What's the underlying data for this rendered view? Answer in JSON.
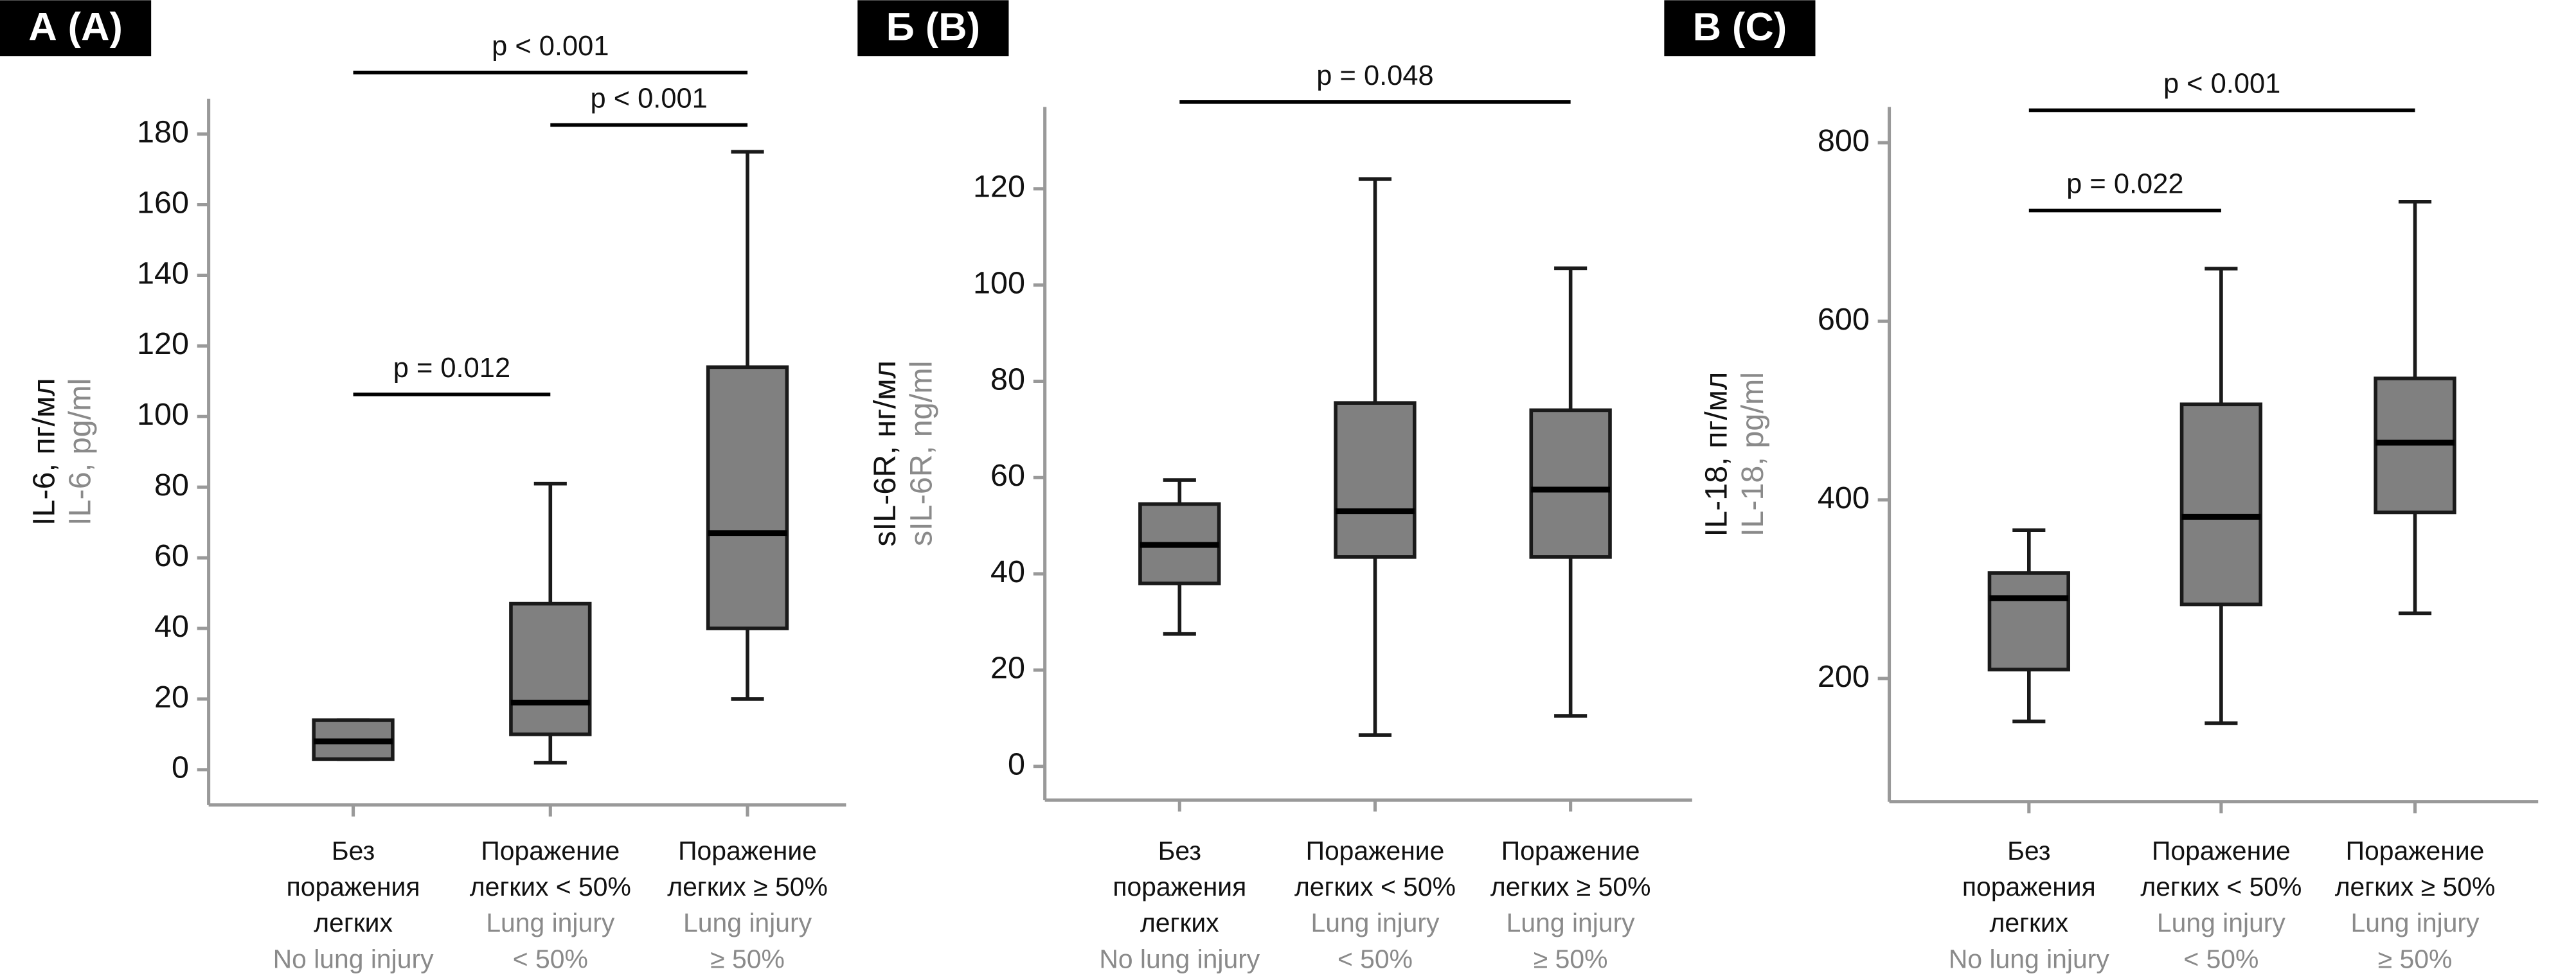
{
  "chart_data": [
    {
      "type": "box",
      "title": "А (A)",
      "ylabel": "IL-6, пг/мл",
      "ylabel_en": "IL-6, pg/ml",
      "categories": [
        [
          "Без",
          "поражения",
          "легких"
        ],
        [
          "Поражение",
          "легких < 50%"
        ],
        [
          "Поражение",
          "легких ≥ 50%"
        ]
      ],
      "categories_en": [
        [
          "No lung injury"
        ],
        [
          "Lung injury",
          "< 50%"
        ],
        [
          "Lung injury",
          "≥ 50%"
        ]
      ],
      "color": "#808080",
      "boxes": [
        {
          "min": 3,
          "q1": 3,
          "median": 8,
          "q3": 14,
          "max": 14
        },
        {
          "min": 2,
          "q1": 10,
          "median": 19,
          "q3": 47,
          "max": 81
        },
        {
          "min": 20,
          "q1": 40,
          "median": 67,
          "q3": 114,
          "max": 175
        }
      ],
      "ylim": [
        -10,
        190
      ],
      "yticks": [
        0,
        20,
        40,
        60,
        80,
        100,
        120,
        140,
        160,
        180
      ],
      "annotations": [
        {
          "text": "p < 0.001",
          "from": 0,
          "to": 2
        },
        {
          "text": "p < 0.001",
          "from": 1,
          "to": 2
        },
        {
          "text": "p = 0.012",
          "from": 0,
          "to": 1
        }
      ]
    },
    {
      "type": "box",
      "title": "Б (B)",
      "ylabel": "sIL-6R, нг/мл",
      "ylabel_en": "sIL-6R, ng/ml",
      "categories": [
        [
          "Без",
          "поражения",
          "легких"
        ],
        [
          "Поражение",
          "легких < 50%"
        ],
        [
          "Поражение",
          "легких ≥ 50%"
        ]
      ],
      "categories_en": [
        [
          "No lung injury"
        ],
        [
          "Lung injury",
          "< 50%"
        ],
        [
          "Lung injury",
          "≥ 50%"
        ]
      ],
      "color": "#808080",
      "boxes": [
        {
          "min": 27.5,
          "q1": 38,
          "median": 46,
          "q3": 54.5,
          "max": 59.5
        },
        {
          "min": 6.5,
          "q1": 43.5,
          "median": 53,
          "q3": 75.5,
          "max": 122
        },
        {
          "min": 10.5,
          "q1": 43.5,
          "median": 57.5,
          "q3": 74,
          "max": 103.5
        }
      ],
      "ylim": [
        -7,
        137
      ],
      "yticks": [
        0,
        20,
        40,
        60,
        80,
        100,
        120
      ],
      "annotations": [
        {
          "text": "p = 0.048",
          "from": 0,
          "to": 2
        }
      ]
    },
    {
      "type": "box",
      "title": "В (C)",
      "ylabel": "IL-18, пг/мл",
      "ylabel_en": "IL-18, pg/ml",
      "categories": [
        [
          "Без",
          "поражения",
          "легких"
        ],
        [
          "Поражение",
          "легких < 50%"
        ],
        [
          "Поражение",
          "легких ≥ 50%"
        ]
      ],
      "categories_en": [
        [
          "No lung injury"
        ],
        [
          "Lung injury",
          "< 50%"
        ],
        [
          "Lung injury",
          "≥ 50%"
        ]
      ],
      "color": "#808080",
      "boxes": [
        {
          "min": 152,
          "q1": 210,
          "median": 290,
          "q3": 318,
          "max": 366
        },
        {
          "min": 150,
          "q1": 283,
          "median": 381,
          "q3": 507,
          "max": 659
        },
        {
          "min": 273,
          "q1": 386,
          "median": 464,
          "q3": 536,
          "max": 734
        }
      ],
      "ylim": [
        62,
        840
      ],
      "yticks": [
        200,
        400,
        600,
        800
      ],
      "annotations": [
        {
          "text": "p < 0.001",
          "from": 0,
          "to": 2
        },
        {
          "text": "p = 0.022",
          "from": 0,
          "to": 1
        }
      ]
    }
  ]
}
